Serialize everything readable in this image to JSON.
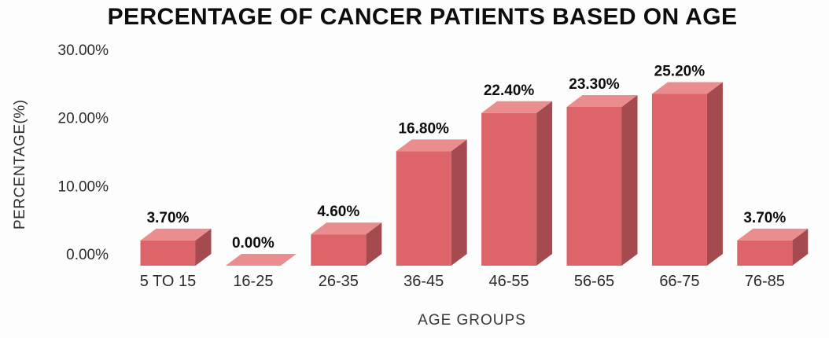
{
  "chart_data": {
    "type": "bar",
    "style": "3d",
    "title": "PERCENTAGE OF CANCER PATIENTS BASED ON AGE",
    "xlabel": "AGE GROUPS",
    "ylabel": "PERCENTAGE(%)",
    "categories": [
      "5 TO 15",
      "16-25",
      "26-35",
      "36-45",
      "46-55",
      "56-65",
      "66-75",
      "76-85"
    ],
    "values": [
      3.7,
      0.0,
      4.6,
      16.8,
      22.4,
      23.3,
      25.2,
      3.7
    ],
    "data_labels": [
      "3.70%",
      "0.00%",
      "4.60%",
      "16.80%",
      "22.40%",
      "23.30%",
      "25.20%",
      "3.70%"
    ],
    "y_ticks": [
      {
        "label": "30.00%",
        "value": 30
      },
      {
        "label": "20.00%",
        "value": 20
      },
      {
        "label": "10.00%",
        "value": 10
      },
      {
        "label": "0.00%",
        "value": 0
      }
    ],
    "ylim": [
      0,
      30
    ],
    "grid": false,
    "legend": false,
    "colors": {
      "bar_front": "#dd6468",
      "bar_top": "#e98d8e",
      "bar_side": "#a54b4f",
      "title_text": "#0d0d0d",
      "tick_text": "#2b2b2b",
      "background": "#fdfdfd"
    }
  }
}
